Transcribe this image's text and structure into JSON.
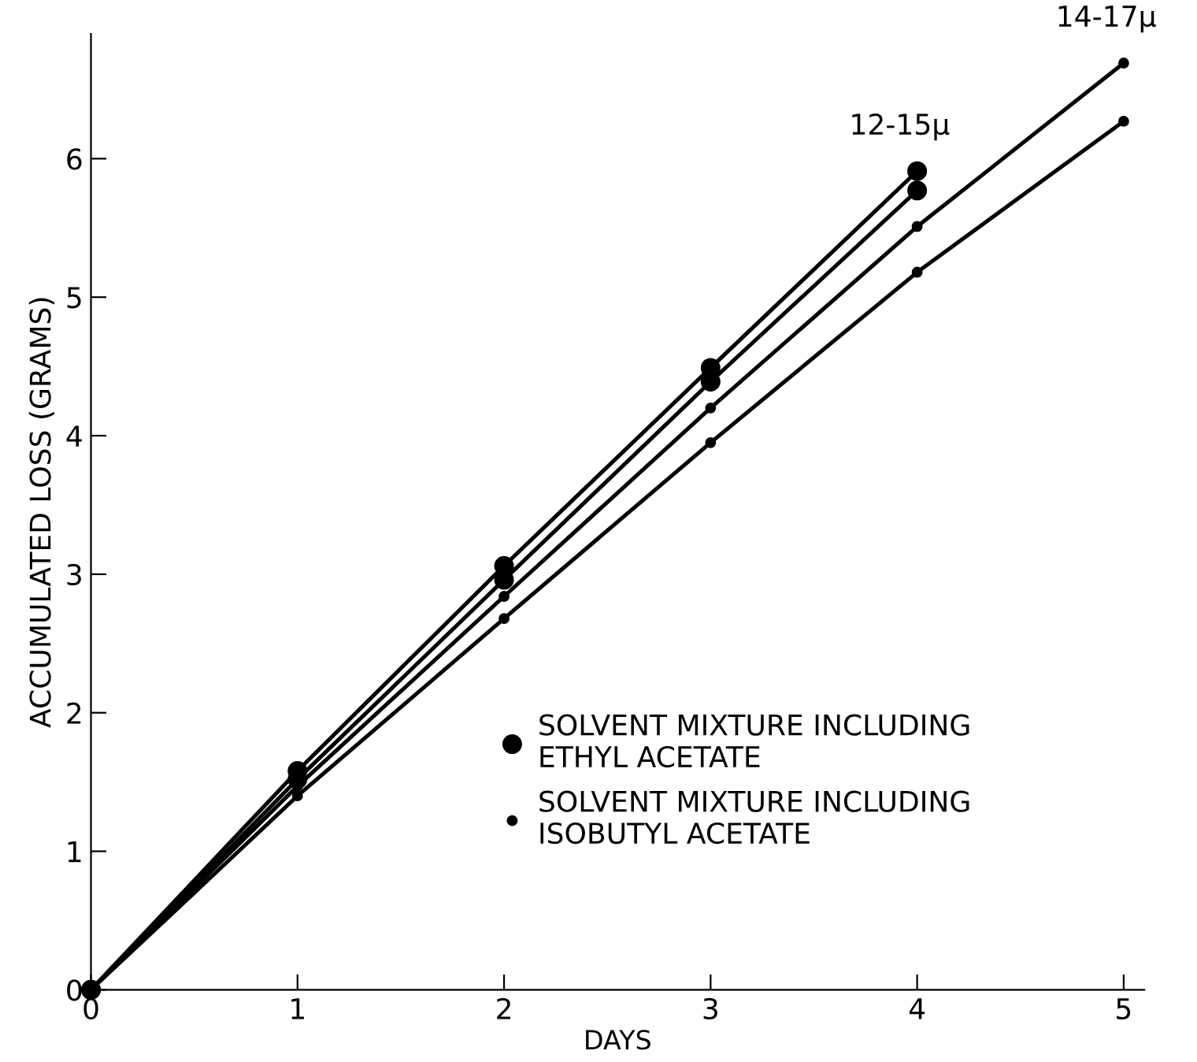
{
  "chart_data": {
    "type": "line",
    "xlabel": "DAYS",
    "ylabel": "ACCUMULATED LOSS (GRAMS)",
    "x": [
      0,
      1,
      2,
      3,
      4
    ],
    "series": [
      {
        "name": "SOLVENT MIXTURE INCLUDING\nETHYL ACETATE",
        "color": "#000000",
        "marker": "circle",
        "values": [
          0,
          1.58,
          3.06,
          4.49,
          5.91
        ]
      },
      {
        "color": "#000000",
        "marker": "circle",
        "values": [
          0,
          1.52,
          2.96,
          4.39,
          5.77
        ]
      },
      {
        "name": "SOLVENT MIXTURE INCLUDING\nISOBUTYL ACETATE",
        "color": "#000000",
        "marker": "circle",
        "x": [
          0,
          1,
          2,
          3,
          4,
          5
        ],
        "values": [
          0,
          1.47,
          2.84,
          4.2,
          5.51,
          6.69
        ]
      },
      {
        "color": "#000000",
        "marker": "circle",
        "x": [
          0,
          1,
          2,
          3,
          4,
          5
        ],
        "values": [
          0,
          1.4,
          2.68,
          3.95,
          5.18,
          6.27
        ]
      }
    ],
    "annotations": [
      {
        "text": "12-15μ",
        "x": 4,
        "y": 5.91
      },
      {
        "text": "14-17μ",
        "x": 5,
        "y": 6.69
      }
    ],
    "xlim": [
      0,
      5.1
    ],
    "xticks": [
      0,
      1,
      2,
      3,
      4,
      5
    ],
    "ylim": [
      0,
      6.9
    ],
    "yticks": [
      0,
      1,
      2,
      3,
      4,
      5,
      6
    ],
    "legend": "bottom right",
    "grid": false,
    "line_style": "solid"
  }
}
